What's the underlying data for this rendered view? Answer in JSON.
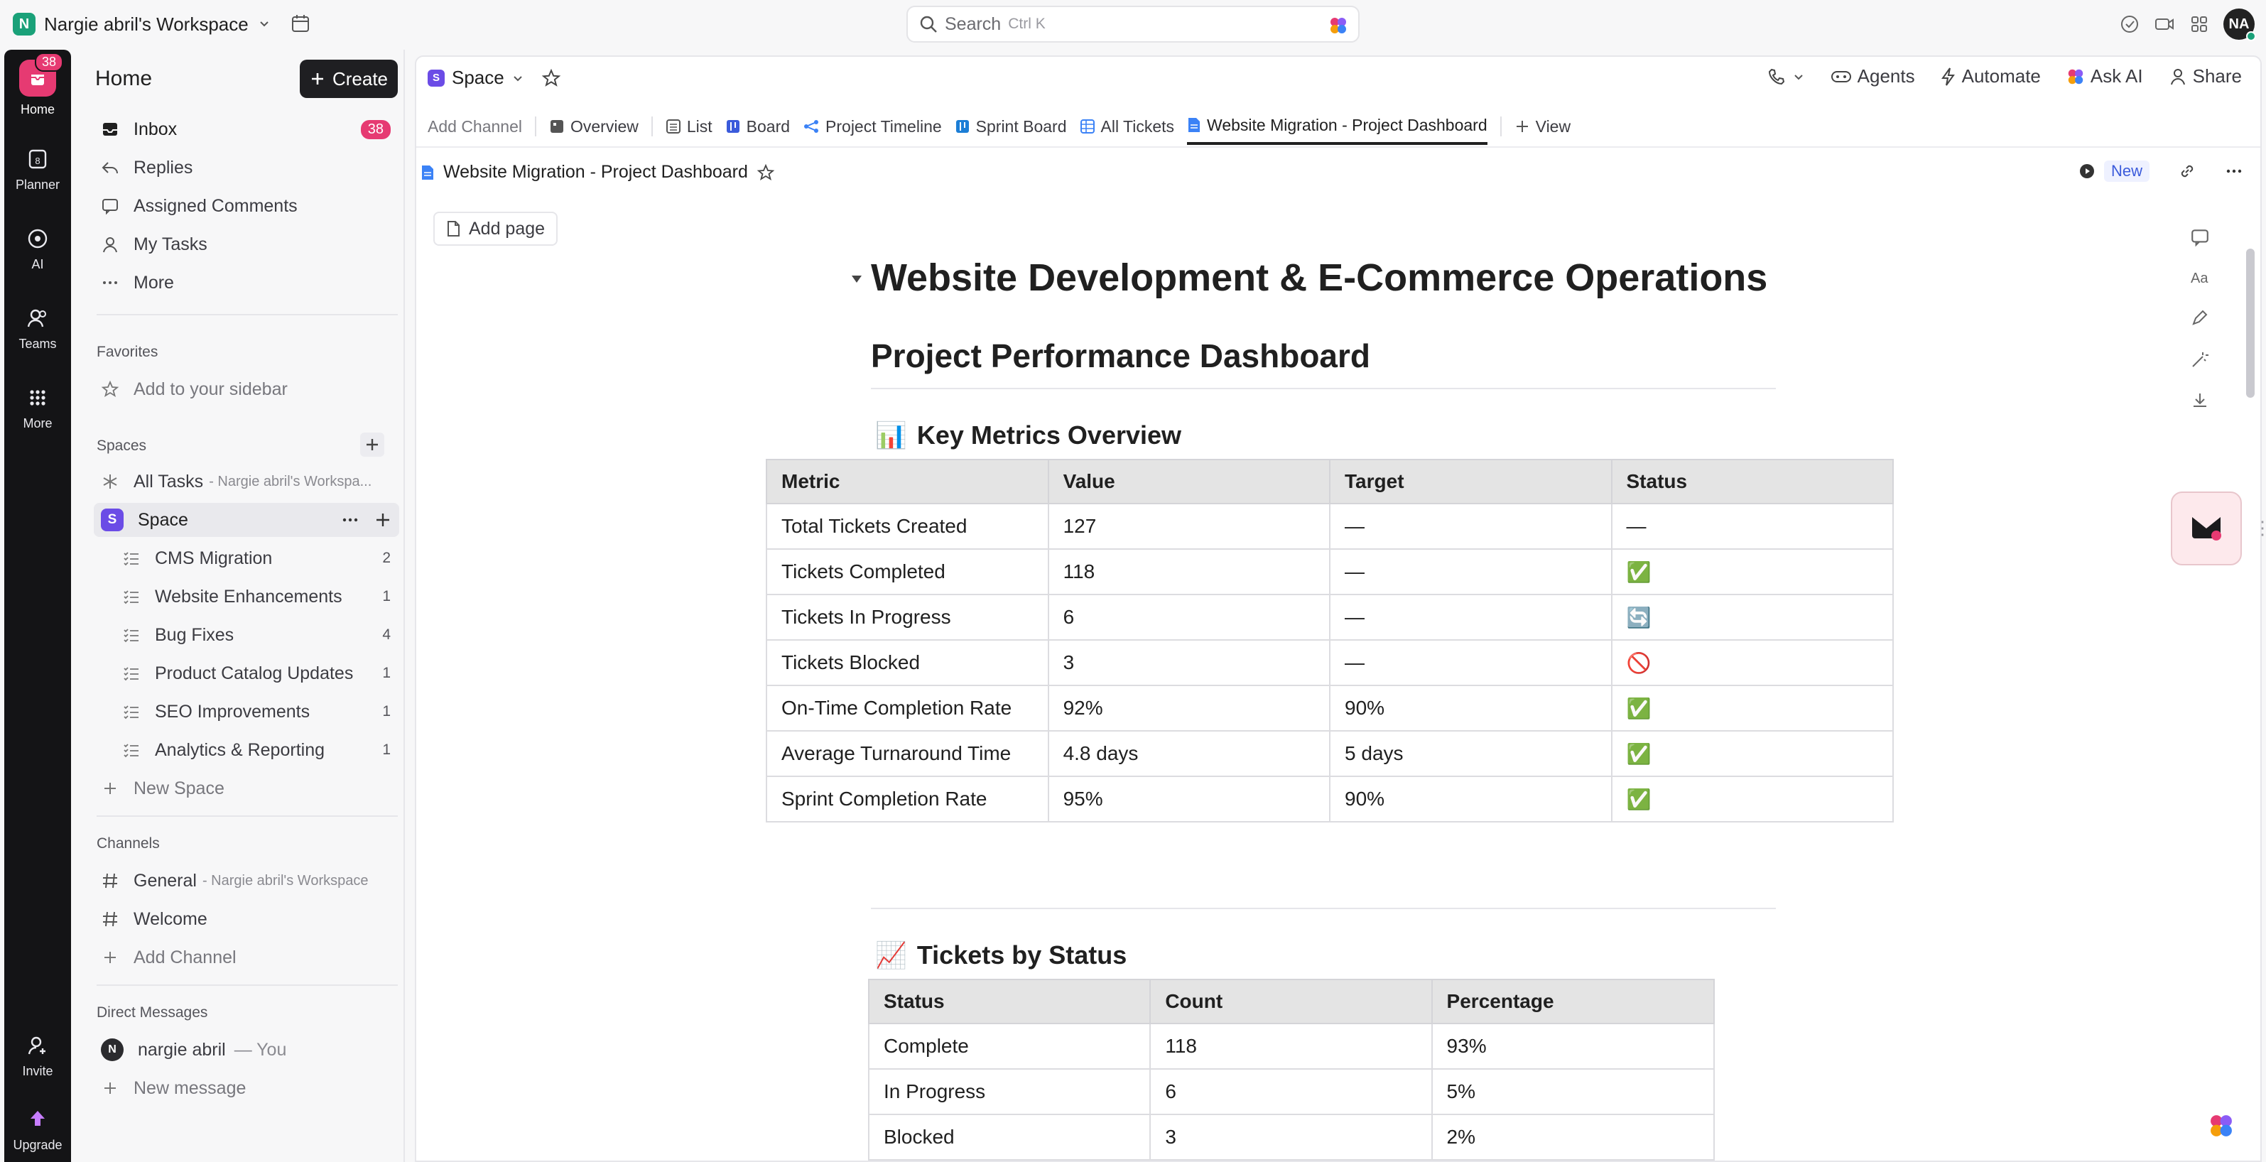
{
  "topbar": {
    "workspace_initial": "N",
    "workspace_name": "Nargie abril's Workspace",
    "search_placeholder": "Search",
    "search_shortcut": "Ctrl K",
    "avatar_initials": "NA"
  },
  "rail": {
    "items": [
      {
        "label": "Home",
        "icon": "home-icon",
        "badge": "38"
      },
      {
        "label": "Planner",
        "icon": "calendar-icon"
      },
      {
        "label": "AI",
        "icon": "ai-icon"
      },
      {
        "label": "Teams",
        "icon": "teams-icon"
      },
      {
        "label": "More",
        "icon": "grid-icon"
      },
      {
        "label": "Invite",
        "icon": "invite-icon"
      },
      {
        "label": "Upgrade",
        "icon": "upgrade-icon"
      }
    ]
  },
  "sidebar": {
    "title": "Home",
    "create_label": "Create",
    "nav": [
      {
        "label": "Inbox",
        "icon": "inbox-icon",
        "badge": "38"
      },
      {
        "label": "Replies",
        "icon": "reply-icon"
      },
      {
        "label": "Assigned Comments",
        "icon": "comment-icon"
      },
      {
        "label": "My Tasks",
        "icon": "user-icon"
      },
      {
        "label": "More",
        "icon": "more-icon"
      }
    ],
    "favorites_heading": "Favorites",
    "add_to_sidebar": "Add to your sidebar",
    "spaces_heading": "Spaces",
    "all_tasks": "All Tasks",
    "all_tasks_sub": "- Nargie abril's Workspa...",
    "space_name": "Space",
    "space_initial": "S",
    "lists": [
      {
        "label": "CMS Migration",
        "count": "2"
      },
      {
        "label": "Website Enhancements",
        "count": "1"
      },
      {
        "label": "Bug Fixes",
        "count": "4"
      },
      {
        "label": "Product Catalog Updates",
        "count": "1"
      },
      {
        "label": "SEO Improvements",
        "count": "1"
      },
      {
        "label": "Analytics & Reporting",
        "count": "1"
      }
    ],
    "new_space": "New Space",
    "channels_heading": "Channels",
    "channel_general": "General",
    "channel_general_sub": "- Nargie abril's Workspace",
    "channel_welcome": "Welcome",
    "add_channel": "Add Channel",
    "dm_heading": "Direct Messages",
    "dm_user": "nargie abril",
    "dm_you": "— You",
    "dm_initial": "N",
    "new_message": "New message"
  },
  "main": {
    "crumb_space": "Space",
    "crumb_initial": "S",
    "actions": {
      "agents": "Agents",
      "automate": "Automate",
      "ask_ai": "Ask AI",
      "share": "Share"
    },
    "tabs": [
      {
        "label": "Add Channel"
      },
      {
        "label": "Overview"
      },
      {
        "label": "List"
      },
      {
        "label": "Board"
      },
      {
        "label": "Project Timeline"
      },
      {
        "label": "Sprint Board"
      },
      {
        "label": "All Tickets"
      },
      {
        "label": "Website Migration - Project Dashboard"
      },
      {
        "label": "View"
      }
    ],
    "doc_title": "Website Migration - Project Dashboard",
    "new_label": "New",
    "add_page": "Add page"
  },
  "doc": {
    "h1": "Website Development & E-Commerce Operations",
    "h2": "Project Performance Dashboard",
    "metrics_heading": "Key Metrics Overview",
    "metrics_emoji": "📊",
    "metrics_headers": [
      "Metric",
      "Value",
      "Target",
      "Status"
    ],
    "metrics_rows": [
      [
        "Total Tickets Created",
        "127",
        "—",
        "—"
      ],
      [
        "Tickets Completed",
        "118",
        "—",
        "✅"
      ],
      [
        "Tickets In Progress",
        "6",
        "—",
        "🔄"
      ],
      [
        "Tickets Blocked",
        "3",
        "—",
        "🚫"
      ],
      [
        "On-Time Completion Rate",
        "92%",
        "90%",
        "✅"
      ],
      [
        "Average Turnaround Time",
        "4.8 days",
        "5 days",
        "✅"
      ],
      [
        "Sprint Completion Rate",
        "95%",
        "90%",
        "✅"
      ]
    ],
    "status_heading": "Tickets by Status",
    "status_emoji": "📈",
    "status_headers": [
      "Status",
      "Count",
      "Percentage"
    ],
    "status_rows": [
      [
        "Complete",
        "118",
        "93%"
      ],
      [
        "In Progress",
        "6",
        "5%"
      ],
      [
        "Blocked",
        "3",
        "2%"
      ]
    ]
  }
}
